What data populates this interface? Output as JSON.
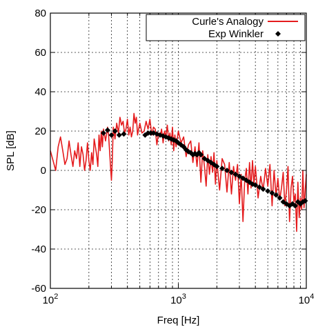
{
  "chart_data": {
    "type": "line",
    "xlabel": "Freq [Hz]",
    "ylabel": "SPL [dB]",
    "xscale": "log",
    "xlim": [
      100,
      10000
    ],
    "ylim": [
      -60,
      80
    ],
    "grid": true,
    "legend_position": "top-right",
    "x_tick_labels": [
      {
        "value": 100,
        "base": "10",
        "exp": "2"
      },
      {
        "value": 1000,
        "base": "10",
        "exp": "3"
      },
      {
        "value": 10000,
        "base": "10",
        "exp": "4"
      }
    ],
    "y_ticks": [
      -60,
      -40,
      -20,
      0,
      20,
      40,
      60,
      80
    ],
    "series": [
      {
        "name": "Curle's Analogy",
        "style": "line",
        "color": "#e41a1c",
        "points": [
          [
            100,
            10
          ],
          [
            105,
            5
          ],
          [
            110,
            0
          ],
          [
            115,
            12
          ],
          [
            120,
            17
          ],
          [
            125,
            10
          ],
          [
            130,
            3
          ],
          [
            135,
            6
          ],
          [
            140,
            15
          ],
          [
            145,
            8
          ],
          [
            150,
            2
          ],
          [
            155,
            10
          ],
          [
            160,
            6
          ],
          [
            165,
            14
          ],
          [
            170,
            2
          ],
          [
            175,
            12
          ],
          [
            180,
            8
          ],
          [
            185,
            0
          ],
          [
            190,
            5
          ],
          [
            195,
            14
          ],
          [
            200,
            5
          ],
          [
            205,
            0
          ],
          [
            210,
            9
          ],
          [
            215,
            3
          ],
          [
            220,
            16
          ],
          [
            230,
            8
          ],
          [
            235,
            2
          ],
          [
            240,
            18
          ],
          [
            245,
            10
          ],
          [
            250,
            20
          ],
          [
            255,
            12
          ],
          [
            260,
            21
          ],
          [
            270,
            15
          ],
          [
            280,
            22
          ],
          [
            285,
            18
          ],
          [
            290,
            10
          ],
          [
            295,
            2
          ],
          [
            300,
            -5
          ],
          [
            305,
            5
          ],
          [
            310,
            22
          ],
          [
            320,
            16
          ],
          [
            330,
            24
          ],
          [
            340,
            19
          ],
          [
            350,
            27
          ],
          [
            360,
            23
          ],
          [
            370,
            25
          ],
          [
            380,
            19
          ],
          [
            390,
            21
          ],
          [
            400,
            26
          ],
          [
            410,
            18
          ],
          [
            420,
            22
          ],
          [
            430,
            17
          ],
          [
            440,
            20
          ],
          [
            450,
            29
          ],
          [
            460,
            24
          ],
          [
            470,
            27
          ],
          [
            480,
            18
          ],
          [
            490,
            21
          ],
          [
            500,
            24
          ],
          [
            520,
            19
          ],
          [
            540,
            20
          ],
          [
            560,
            25
          ],
          [
            580,
            21
          ],
          [
            600,
            26
          ],
          [
            620,
            18
          ],
          [
            640,
            22
          ],
          [
            660,
            21
          ],
          [
            680,
            13
          ],
          [
            700,
            19
          ],
          [
            720,
            17
          ],
          [
            740,
            21
          ],
          [
            760,
            14
          ],
          [
            780,
            20
          ],
          [
            800,
            17
          ],
          [
            820,
            23
          ],
          [
            840,
            15
          ],
          [
            860,
            19
          ],
          [
            880,
            13
          ],
          [
            900,
            22
          ],
          [
            920,
            10
          ],
          [
            940,
            18
          ],
          [
            960,
            12
          ],
          [
            980,
            16
          ],
          [
            1000,
            20
          ],
          [
            1050,
            14
          ],
          [
            1100,
            17
          ],
          [
            1150,
            7
          ],
          [
            1200,
            13
          ],
          [
            1250,
            15
          ],
          [
            1300,
            4
          ],
          [
            1350,
            12
          ],
          [
            1400,
            2
          ],
          [
            1450,
            14
          ],
          [
            1500,
            -6
          ],
          [
            1550,
            10
          ],
          [
            1600,
            2
          ],
          [
            1650,
            -8
          ],
          [
            1700,
            8
          ],
          [
            1750,
            -2
          ],
          [
            1800,
            7
          ],
          [
            1850,
            -1
          ],
          [
            1900,
            9
          ],
          [
            1950,
            -7
          ],
          [
            2000,
            5
          ],
          [
            2100,
            -10
          ],
          [
            2200,
            6
          ],
          [
            2300,
            3
          ],
          [
            2400,
            -11
          ],
          [
            2500,
            4
          ],
          [
            2600,
            -12
          ],
          [
            2700,
            2
          ],
          [
            2800,
            -5
          ],
          [
            2900,
            3
          ],
          [
            3000,
            -17
          ],
          [
            3100,
            -2
          ],
          [
            3200,
            -26
          ],
          [
            3300,
            -5
          ],
          [
            3400,
            1
          ],
          [
            3500,
            -12
          ],
          [
            3600,
            4
          ],
          [
            3700,
            -9
          ],
          [
            3800,
            5
          ],
          [
            3900,
            -7
          ],
          [
            4000,
            2
          ],
          [
            4200,
            -14
          ],
          [
            4400,
            -3
          ],
          [
            4600,
            -10
          ],
          [
            4800,
            1
          ],
          [
            5000,
            -8
          ],
          [
            5200,
            3
          ],
          [
            5400,
            -18
          ],
          [
            5600,
            0
          ],
          [
            5800,
            -13
          ],
          [
            6000,
            -4
          ],
          [
            6200,
            -15
          ],
          [
            6400,
            -9
          ],
          [
            6600,
            -1
          ],
          [
            6800,
            -18
          ],
          [
            7000,
            -10
          ],
          [
            7200,
            2
          ],
          [
            7400,
            -26
          ],
          [
            7600,
            -9
          ],
          [
            7800,
            -3
          ],
          [
            8000,
            -16
          ],
          [
            8200,
            -12
          ],
          [
            8400,
            -31
          ],
          [
            8600,
            -6
          ],
          [
            8800,
            -24
          ],
          [
            9000,
            -14
          ],
          [
            9200,
            -20
          ],
          [
            9400,
            0
          ],
          [
            9600,
            -19
          ],
          [
            9800,
            -10
          ],
          [
            10000,
            -2
          ]
        ]
      },
      {
        "name": "Exp Winkler",
        "style": "markers",
        "color": "#000000",
        "points": [
          [
            260,
            19
          ],
          [
            280,
            20.5
          ],
          [
            300,
            18
          ],
          [
            320,
            20
          ],
          [
            345,
            18
          ],
          [
            375,
            18.5
          ],
          [
            550,
            18
          ],
          [
            580,
            19
          ],
          [
            610,
            19
          ],
          [
            640,
            19
          ],
          [
            680,
            18.5
          ],
          [
            720,
            18
          ],
          [
            760,
            17.5
          ],
          [
            800,
            17
          ],
          [
            840,
            16.5
          ],
          [
            880,
            16
          ],
          [
            920,
            15.5
          ],
          [
            960,
            15
          ],
          [
            1000,
            14
          ],
          [
            1050,
            13
          ],
          [
            1100,
            12
          ],
          [
            1150,
            10.5
          ],
          [
            1200,
            9.5
          ],
          [
            1250,
            9
          ],
          [
            1300,
            8
          ],
          [
            1350,
            8.5
          ],
          [
            1400,
            8
          ],
          [
            1450,
            9
          ],
          [
            1500,
            8
          ],
          [
            1600,
            6
          ],
          [
            1700,
            5
          ],
          [
            1800,
            4
          ],
          [
            1900,
            3
          ],
          [
            2000,
            2
          ],
          [
            2200,
            1
          ],
          [
            2400,
            0
          ],
          [
            2600,
            -1
          ],
          [
            2800,
            -2
          ],
          [
            3000,
            -3
          ],
          [
            3200,
            -4
          ],
          [
            3400,
            -5
          ],
          [
            3600,
            -6
          ],
          [
            3800,
            -7
          ],
          [
            4000,
            -7.5
          ],
          [
            4300,
            -8.5
          ],
          [
            4600,
            -9.5
          ],
          [
            5000,
            -10.5
          ],
          [
            5400,
            -11.5
          ],
          [
            5800,
            -12.5
          ],
          [
            6200,
            -14
          ],
          [
            6600,
            -16
          ],
          [
            7000,
            -17
          ],
          [
            7400,
            -18
          ],
          [
            7800,
            -17
          ],
          [
            8200,
            -18
          ],
          [
            8600,
            -16
          ],
          [
            9000,
            -17
          ],
          [
            9400,
            -16
          ],
          [
            9800,
            -15.5
          ]
        ]
      }
    ]
  }
}
